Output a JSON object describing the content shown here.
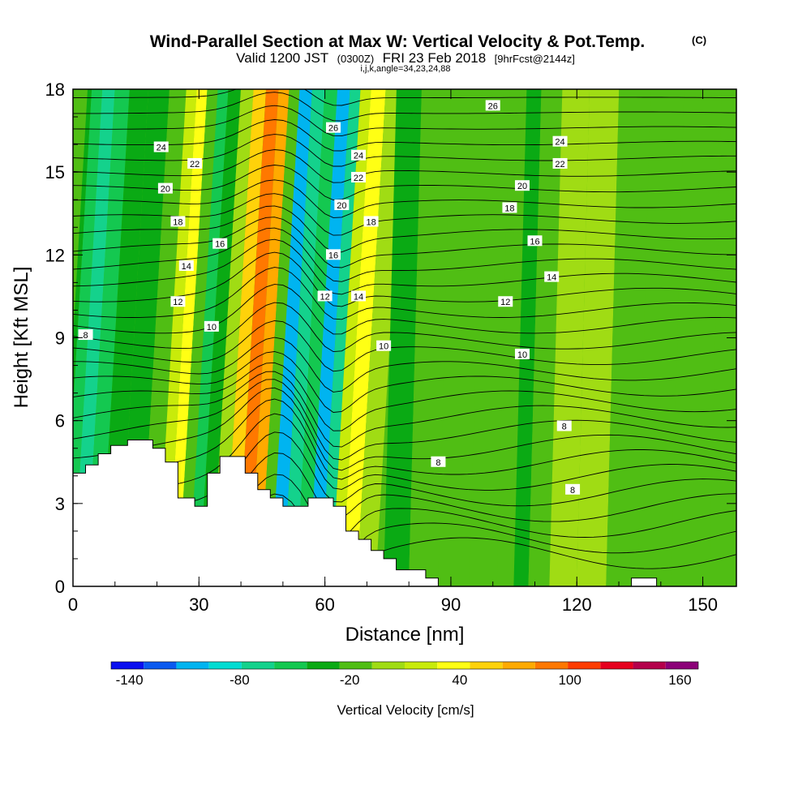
{
  "chart_data": {
    "type": "heatmap",
    "title": {
      "main": "Wind-Parallel Section at Max W: Vertical Velocity & Pot.Temp.",
      "main_suffix": "(C)",
      "sub_prefix": "Valid 1200 JST",
      "sub_zulu": "(0300Z)",
      "sub_date": "FRI 23 Feb 2018",
      "sub_fcst": "[9hrFcst@2144z]",
      "sub_line2": "i,j,k,angle=34,23,24,88"
    },
    "xlabel": "Distance [nm]",
    "ylabel": "Height [Kft MSL]",
    "xlim": [
      0,
      158
    ],
    "ylim": [
      0,
      18
    ],
    "x_ticks": [
      "0",
      "30",
      "60",
      "90",
      "120",
      "150"
    ],
    "y_ticks": [
      "0",
      "3",
      "6",
      "9",
      "12",
      "15",
      "18"
    ],
    "colorbar": {
      "title": "Vertical Velocity [cm/s]",
      "tick_labels": [
        "-140",
        "-80",
        "-20",
        "40",
        "100",
        "160"
      ],
      "tick_values": [
        -140,
        -80,
        -20,
        40,
        100,
        160
      ],
      "range": [
        -150,
        170
      ],
      "step": 20,
      "colors": [
        "#0a0ff0",
        "#0a5af0",
        "#00b4f0",
        "#00dcd2",
        "#14d28c",
        "#14c850",
        "#0aaa14",
        "#50be14",
        "#a0dc14",
        "#c8eb0a",
        "#ffff14",
        "#ffd20a",
        "#ffaa00",
        "#ff7800",
        "#ff3c00",
        "#e6001e",
        "#b4004b",
        "#8c0078"
      ]
    },
    "velocity_columns": [
      {
        "x": 0,
        "w": -20
      },
      {
        "x": 2,
        "w": -40
      },
      {
        "x": 5,
        "w": -60
      },
      {
        "x": 8,
        "w": -40
      },
      {
        "x": 12,
        "w": -20
      },
      {
        "x": 17,
        "w": -30
      },
      {
        "x": 22,
        "w": -10
      },
      {
        "x": 25,
        "w": 30
      },
      {
        "x": 27,
        "w": 50
      },
      {
        "x": 30,
        "w": -10
      },
      {
        "x": 32,
        "w": -50
      },
      {
        "x": 35,
        "w": -20
      },
      {
        "x": 38,
        "w": 10
      },
      {
        "x": 41,
        "w": 70
      },
      {
        "x": 44,
        "w": 120
      },
      {
        "x": 47,
        "w": 90
      },
      {
        "x": 49,
        "w": -10
      },
      {
        "x": 52,
        "w": -110
      },
      {
        "x": 55,
        "w": -60
      },
      {
        "x": 58,
        "w": -40
      },
      {
        "x": 61,
        "w": -100
      },
      {
        "x": 64,
        "w": -60
      },
      {
        "x": 66,
        "w": 40
      },
      {
        "x": 69,
        "w": 60
      },
      {
        "x": 73,
        "w": 10
      },
      {
        "x": 78,
        "w": -20
      },
      {
        "x": 85,
        "w": -10
      },
      {
        "x": 92,
        "w": 0
      },
      {
        "x": 100,
        "w": -10
      },
      {
        "x": 105,
        "w": -10
      },
      {
        "x": 108,
        "w": -30
      },
      {
        "x": 112,
        "w": -5
      },
      {
        "x": 118,
        "w": 10
      },
      {
        "x": 125,
        "w": 15
      },
      {
        "x": 132,
        "w": 0
      },
      {
        "x": 140,
        "w": -10
      },
      {
        "x": 148,
        "w": 5
      },
      {
        "x": 158,
        "w": 0
      }
    ],
    "terrain": [
      [
        0,
        4.1
      ],
      [
        3,
        4.1
      ],
      [
        3,
        4.4
      ],
      [
        6,
        4.4
      ],
      [
        6,
        4.8
      ],
      [
        9,
        4.8
      ],
      [
        9,
        5.1
      ],
      [
        13,
        5.1
      ],
      [
        13,
        5.3
      ],
      [
        19,
        5.3
      ],
      [
        19,
        5.0
      ],
      [
        22,
        5.0
      ],
      [
        22,
        4.5
      ],
      [
        25,
        4.5
      ],
      [
        25,
        3.2
      ],
      [
        29,
        3.2
      ],
      [
        29,
        2.9
      ],
      [
        32,
        2.9
      ],
      [
        32,
        4.1
      ],
      [
        35,
        4.1
      ],
      [
        35,
        4.7
      ],
      [
        41,
        4.7
      ],
      [
        41,
        4.1
      ],
      [
        44,
        4.1
      ],
      [
        44,
        3.5
      ],
      [
        47,
        3.5
      ],
      [
        47,
        3.2
      ],
      [
        50,
        3.2
      ],
      [
        50,
        2.9
      ],
      [
        56,
        2.9
      ],
      [
        56,
        3.2
      ],
      [
        62,
        3.2
      ],
      [
        62,
        2.9
      ],
      [
        65,
        2.9
      ],
      [
        65,
        2.0
      ],
      [
        68,
        2.0
      ],
      [
        68,
        1.7
      ],
      [
        71,
        1.7
      ],
      [
        71,
        1.3
      ],
      [
        74,
        1.3
      ],
      [
        74,
        1.0
      ],
      [
        77,
        1.0
      ],
      [
        77,
        0.6
      ],
      [
        84,
        0.6
      ],
      [
        84,
        0.3
      ],
      [
        87,
        0.3
      ],
      [
        87,
        0
      ],
      [
        133,
        0
      ],
      [
        133,
        0.3
      ],
      [
        139,
        0.3
      ],
      [
        139,
        0
      ],
      [
        158,
        0
      ]
    ],
    "isentropes_degC": [
      8,
      10,
      12,
      14,
      16,
      18,
      20,
      22,
      24,
      26
    ],
    "contour_labels": [
      {
        "text": "8",
        "x": 3,
        "y": 9.1
      },
      {
        "text": "10",
        "x": 33,
        "y": 9.4
      },
      {
        "text": "12",
        "x": 25,
        "y": 10.3
      },
      {
        "text": "14",
        "x": 27,
        "y": 11.6
      },
      {
        "text": "16",
        "x": 35,
        "y": 12.4
      },
      {
        "text": "18",
        "x": 25,
        "y": 13.2
      },
      {
        "text": "20",
        "x": 22,
        "y": 14.4
      },
      {
        "text": "22",
        "x": 29,
        "y": 15.3
      },
      {
        "text": "24",
        "x": 21,
        "y": 15.9
      },
      {
        "text": "26",
        "x": 62,
        "y": 16.6
      },
      {
        "text": "24",
        "x": 68,
        "y": 15.6
      },
      {
        "text": "22",
        "x": 68,
        "y": 14.8
      },
      {
        "text": "20",
        "x": 64,
        "y": 13.8
      },
      {
        "text": "18",
        "x": 71,
        "y": 13.2
      },
      {
        "text": "16",
        "x": 62,
        "y": 12.0
      },
      {
        "text": "12",
        "x": 60,
        "y": 10.5
      },
      {
        "text": "14",
        "x": 68,
        "y": 10.5
      },
      {
        "text": "10",
        "x": 74,
        "y": 8.7
      },
      {
        "text": "26",
        "x": 100,
        "y": 17.4
      },
      {
        "text": "24",
        "x": 116,
        "y": 16.1
      },
      {
        "text": "22",
        "x": 116,
        "y": 15.3
      },
      {
        "text": "20",
        "x": 107,
        "y": 14.5
      },
      {
        "text": "18",
        "x": 104,
        "y": 13.7
      },
      {
        "text": "16",
        "x": 110,
        "y": 12.5
      },
      {
        "text": "14",
        "x": 114,
        "y": 11.2
      },
      {
        "text": "12",
        "x": 103,
        "y": 10.3
      },
      {
        "text": "10",
        "x": 107,
        "y": 8.4
      },
      {
        "text": "8",
        "x": 117,
        "y": 5.8
      },
      {
        "text": "8",
        "x": 87,
        "y": 4.5
      },
      {
        "text": "8",
        "x": 119,
        "y": 3.5
      }
    ]
  }
}
